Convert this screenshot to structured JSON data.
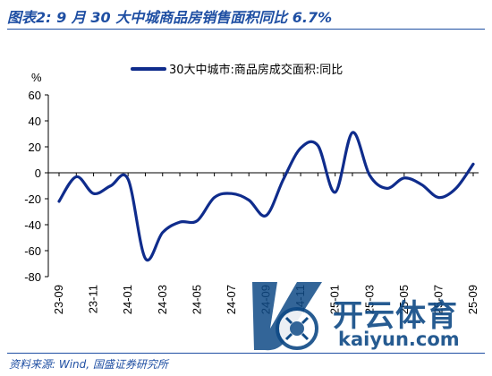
{
  "header": {
    "title": "图表2:  9 月 30 大中城商品房销售面积同比 6.7%"
  },
  "footer": {
    "source": "资料来源:  Wind,  国盛证券研究所"
  },
  "watermark": {
    "brand": "开云体育",
    "url": "kaiyun.com"
  },
  "colors": {
    "series": "#0f2c8c",
    "accent": "#1f4fa3"
  },
  "chart_data": {
    "type": "line",
    "title": "",
    "xlabel": "",
    "ylabel": "%",
    "ylim": [
      -80,
      60
    ],
    "yticks": [
      60,
      40,
      20,
      0,
      -20,
      -40,
      -60,
      -80
    ],
    "ytick_labels": [
      "60",
      "40",
      "20",
      "0",
      "-20",
      "-40",
      "-60",
      "-80"
    ],
    "legend_position": "top-right",
    "grid": false,
    "x": [
      "23-09",
      "23-10",
      "23-11",
      "23-12",
      "24-01",
      "24-02",
      "24-03",
      "24-04",
      "24-05",
      "24-06",
      "24-07",
      "24-08",
      "24-09",
      "24-10",
      "24-11",
      "24-12",
      "25-01",
      "25-02",
      "25-03",
      "25-04",
      "25-05",
      "25-06",
      "25-07",
      "25-08",
      "25-09"
    ],
    "xtick_labels": [
      "23-09",
      "23-11",
      "24-01",
      "24-03",
      "24-05",
      "24-07",
      "24-09",
      "24-11",
      "25-01",
      "25-03",
      "25-05",
      "25-07",
      "25-09"
    ],
    "series": [
      {
        "name": "30大中城市:商品房成交面积:同比",
        "values": [
          -22,
          -3,
          -16,
          -10,
          -5,
          -66,
          -46,
          -38,
          -37,
          -19,
          -16,
          -21,
          -33,
          -5,
          19,
          21,
          -15,
          31,
          -2,
          -12,
          -4,
          -9,
          -19,
          -12,
          6.7
        ]
      }
    ]
  }
}
